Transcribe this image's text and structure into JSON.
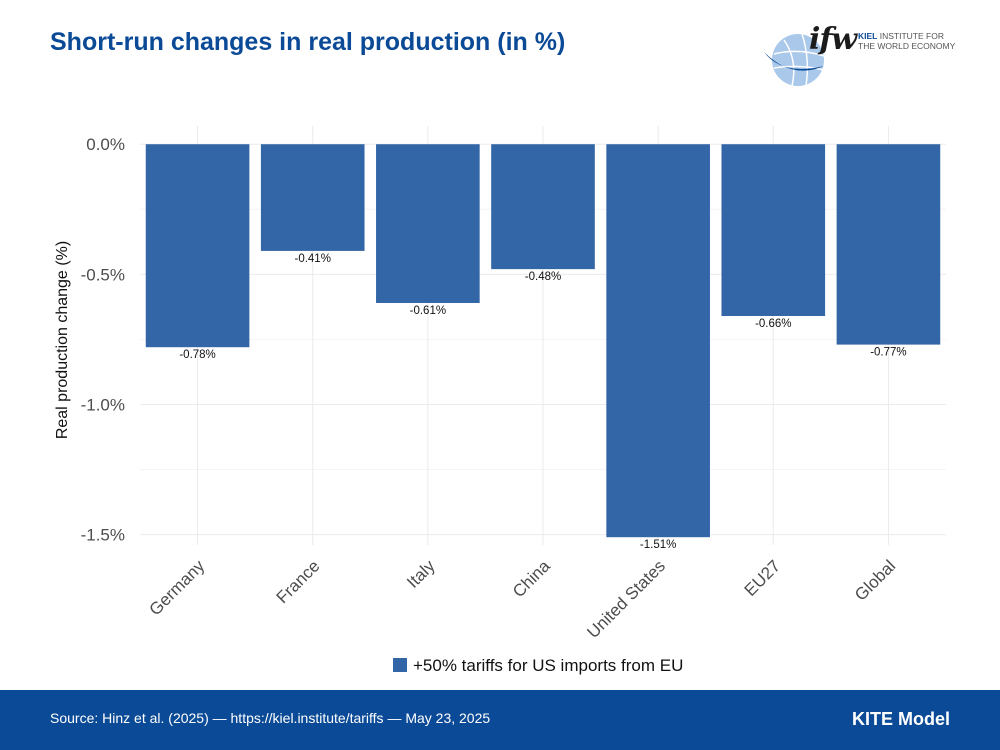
{
  "header": {
    "title": "Short-run changes in real production (in %)"
  },
  "logo": {
    "mark": "ifw",
    "line1_bold": "KIEL",
    "line1_rest": "INSTITUTE FOR",
    "line2": "THE WORLD ECONOMY"
  },
  "chart_data": {
    "type": "bar",
    "title": "Short-run changes in real production (in %)",
    "xlabel": "",
    "ylabel": "Real production change (%)",
    "categories": [
      "Germany",
      "France",
      "Italy",
      "China",
      "United States",
      "EU27",
      "Global"
    ],
    "series": [
      {
        "name": "+50% tariffs for US imports from EU",
        "values": [
          -0.78,
          -0.41,
          -0.61,
          -0.48,
          -1.51,
          -0.66,
          -0.77
        ],
        "labels": [
          "-0.78%",
          "-0.41%",
          "-0.61%",
          "-0.48%",
          "-1.51%",
          "-0.66%",
          "-0.77%"
        ],
        "color": "#3366a6"
      }
    ],
    "ylim": [
      -1.54,
      0.07
    ],
    "yticks": [
      0,
      -0.5,
      -1.0,
      -1.5
    ],
    "ytick_labels": [
      "0.0%",
      "-0.5%",
      "-1.0%",
      "-1.5%"
    ],
    "grid": true,
    "legend_position": "bottom"
  },
  "footer": {
    "source": "Source: Hinz et al. (2025) — https://kiel.institute/tariffs — May 23, 2025",
    "model": "KITE Model"
  },
  "colors": {
    "brand": "#0b4a96",
    "bar": "#3366a6",
    "grid": "#ebebeb"
  }
}
